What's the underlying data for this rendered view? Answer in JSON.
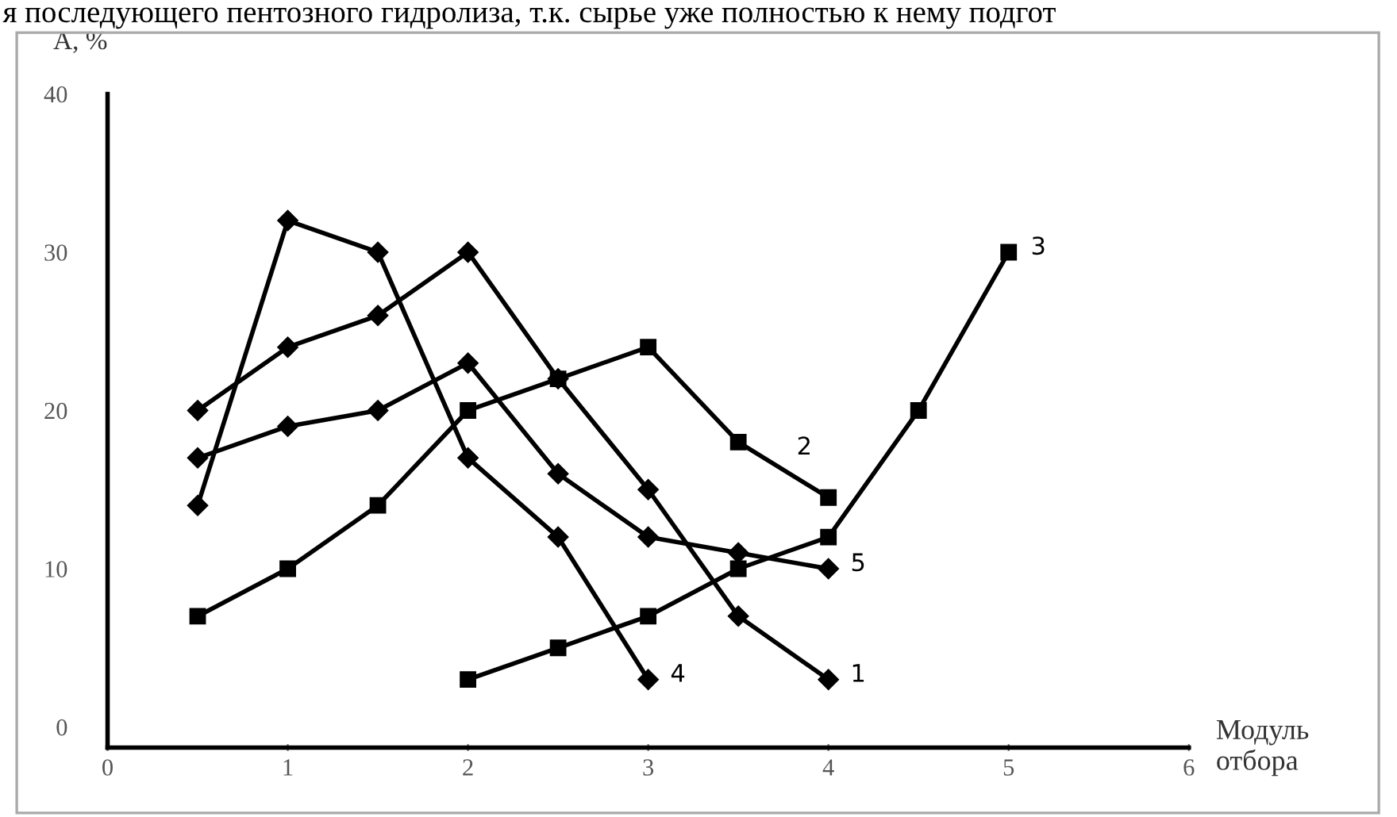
{
  "chart_data": {
    "type": "line",
    "ylabel": "А, %",
    "xlabel": "Модуль отбора",
    "annotations": [
      "я последующего пентозного гидролиза, т.к. сырье уже полностью к нему подгот"
    ],
    "xlim": [
      0,
      6
    ],
    "xticks": [
      0,
      1,
      2,
      3,
      4,
      5,
      6
    ],
    "ylim": [
      -1.3,
      40
    ],
    "yticks": [
      0,
      10,
      20,
      30,
      40
    ],
    "grid": false,
    "legend": false,
    "line_style": "solid",
    "series": [
      {
        "name": "1",
        "color": "#000000",
        "marker": "diamond",
        "x": [
          0.5,
          1,
          1.5,
          2,
          2.5,
          3,
          3.5,
          4
        ],
        "values": [
          20,
          24,
          26,
          30,
          22,
          15,
          7,
          3
        ]
      },
      {
        "name": "2",
        "color": "#000000",
        "marker": "square",
        "x": [
          0.5,
          1,
          1.5,
          2,
          2.5,
          3,
          3.5,
          4
        ],
        "values": [
          7,
          10,
          14,
          20,
          22,
          24,
          18,
          14.5
        ]
      },
      {
        "name": "3",
        "color": "#000000",
        "marker": "square",
        "x": [
          2,
          2.5,
          3,
          3.5,
          4,
          4.5,
          5
        ],
        "values": [
          3,
          5,
          7,
          10,
          12,
          20,
          30
        ]
      },
      {
        "name": "4",
        "color": "#000000",
        "marker": "diamond",
        "x": [
          0.5,
          1,
          1.5,
          2,
          2.5,
          3
        ],
        "values": [
          14,
          32,
          30,
          17,
          12,
          3
        ]
      },
      {
        "name": "5",
        "color": "#000000",
        "marker": "diamond",
        "x": [
          0.5,
          1,
          1.5,
          2,
          2.5,
          3,
          3.5,
          4
        ],
        "values": [
          17,
          19,
          20,
          23,
          16,
          12,
          11,
          10
        ]
      }
    ]
  }
}
